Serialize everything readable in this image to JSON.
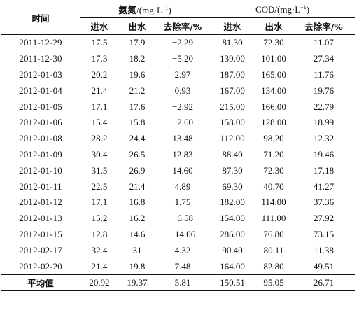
{
  "header": {
    "time_label": "时间",
    "group1": {
      "name": "氨氮",
      "unit_prefix": "/(mg·L",
      "unit_exp": "−1",
      "unit_suffix": ")"
    },
    "group2": {
      "name": "COD",
      "unit_prefix": "/(mg·L",
      "unit_exp": "−1",
      "unit_suffix": ")"
    },
    "subcols": [
      "进水",
      "出水",
      "去除率/%",
      "进水",
      "出水",
      "去除率/%"
    ]
  },
  "rows": [
    {
      "date": "2011-12-29",
      "v": [
        "17.5",
        "17.9",
        "−2.29",
        "81.30",
        "72.30",
        "11.07"
      ]
    },
    {
      "date": "2011-12-30",
      "v": [
        "17.3",
        "18.2",
        "−5.20",
        "139.00",
        "101.00",
        "27.34"
      ]
    },
    {
      "date": "2012-01-03",
      "v": [
        "20.2",
        "19.6",
        "2.97",
        "187.00",
        "165.00",
        "11.76"
      ]
    },
    {
      "date": "2012-01-04",
      "v": [
        "21.4",
        "21.2",
        "0.93",
        "167.00",
        "134.00",
        "19.76"
      ]
    },
    {
      "date": "2012-01-05",
      "v": [
        "17.1",
        "17.6",
        "−2.92",
        "215.00",
        "166.00",
        "22.79"
      ]
    },
    {
      "date": "2012-01-06",
      "v": [
        "15.4",
        "15.8",
        "−2.60",
        "158.00",
        "128.00",
        "18.99"
      ]
    },
    {
      "date": "2012-01-08",
      "v": [
        "28.2",
        "24.4",
        "13.48",
        "112.00",
        "98.20",
        "12.32"
      ]
    },
    {
      "date": "2012-01-09",
      "v": [
        "30.4",
        "26.5",
        "12.83",
        "88.40",
        "71.20",
        "19.46"
      ]
    },
    {
      "date": "2012-01-10",
      "v": [
        "31.5",
        "26.9",
        "14.60",
        "87.30",
        "72.30",
        "17.18"
      ]
    },
    {
      "date": "2012-01-11",
      "v": [
        "22.5",
        "21.4",
        "4.89",
        "69.30",
        "40.70",
        "41.27"
      ]
    },
    {
      "date": "2012-01-12",
      "v": [
        "17.1",
        "16.8",
        "1.75",
        "182.00",
        "114.00",
        "37.36"
      ]
    },
    {
      "date": "2012-01-13",
      "v": [
        "15.2",
        "16.2",
        "−6.58",
        "154.00",
        "111.00",
        "27.92"
      ]
    },
    {
      "date": "2012-01-15",
      "v": [
        "12.8",
        "14.6",
        "−14.06",
        "286.00",
        "76.80",
        "73.15"
      ]
    },
    {
      "date": "2012-02-17",
      "v": [
        "32.4",
        "31",
        "4.32",
        "90.40",
        "80.11",
        "11.38"
      ]
    },
    {
      "date": "2012-02-20",
      "v": [
        "21.4",
        "19.8",
        "7.48",
        "164.00",
        "82.80",
        "49.51"
      ]
    }
  ],
  "average": {
    "label": "平均值",
    "v": [
      "20.92",
      "19.37",
      "5.81",
      "150.51",
      "95.05",
      "26.71"
    ]
  }
}
